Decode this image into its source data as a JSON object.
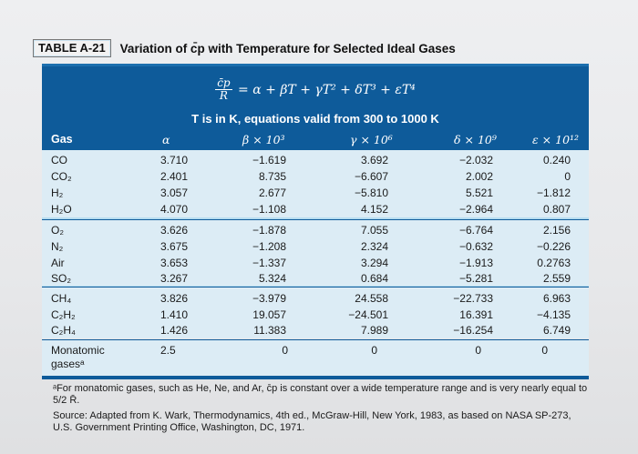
{
  "title": {
    "table_label": "TABLE A-21",
    "caption": "Variation of c̄p with Temperature for Selected Ideal Gases"
  },
  "header": {
    "equation_lhs_num": "c̄p",
    "equation_lhs_den": "R̄",
    "equation_rhs": "= α + βT + γT² + δT³ + εT⁴",
    "condition": "T is in K, equations valid from 300 to 1000 K",
    "columns": [
      "Gas",
      "α",
      "β × 10³",
      "γ × 10⁶",
      "δ × 10⁹",
      "ε × 10¹²"
    ]
  },
  "groups": [
    {
      "rows": [
        {
          "gas": "CO",
          "alpha": "3.710",
          "beta": "−1.619",
          "gamma": "3.692",
          "delta": "−2.032",
          "epsilon": "0.240"
        },
        {
          "gas": "CO₂",
          "alpha": "2.401",
          "beta": "8.735",
          "gamma": "−6.607",
          "delta": "2.002",
          "epsilon": "0"
        },
        {
          "gas": "H₂",
          "alpha": "3.057",
          "beta": "2.677",
          "gamma": "−5.810",
          "delta": "5.521",
          "epsilon": "−1.812"
        },
        {
          "gas": "H₂O",
          "alpha": "4.070",
          "beta": "−1.108",
          "gamma": "4.152",
          "delta": "−2.964",
          "epsilon": "0.807"
        }
      ]
    },
    {
      "rows": [
        {
          "gas": "O₂",
          "alpha": "3.626",
          "beta": "−1.878",
          "gamma": "7.055",
          "delta": "−6.764",
          "epsilon": "2.156"
        },
        {
          "gas": "N₂",
          "alpha": "3.675",
          "beta": "−1.208",
          "gamma": "2.324",
          "delta": "−0.632",
          "epsilon": "−0.226"
        },
        {
          "gas": "Air",
          "alpha": "3.653",
          "beta": "−1.337",
          "gamma": "3.294",
          "delta": "−1.913",
          "epsilon": "0.2763"
        },
        {
          "gas": "SO₂",
          "alpha": "3.267",
          "beta": "5.324",
          "gamma": "0.684",
          "delta": "−5.281",
          "epsilon": "2.559"
        }
      ]
    },
    {
      "rows": [
        {
          "gas": "CH₄",
          "alpha": "3.826",
          "beta": "−3.979",
          "gamma": "24.558",
          "delta": "−22.733",
          "epsilon": "6.963"
        },
        {
          "gas": "C₂H₂",
          "alpha": "1.410",
          "beta": "19.057",
          "gamma": "−24.501",
          "delta": "16.391",
          "epsilon": "−4.135"
        },
        {
          "gas": "C₂H₄",
          "alpha": "1.426",
          "beta": "11.383",
          "gamma": "7.989",
          "delta": "−16.254",
          "epsilon": "6.749"
        }
      ]
    },
    {
      "rows": [
        {
          "gas": "Monatomic gasesᵃ",
          "alpha": "2.5",
          "beta": "0",
          "gamma": "0",
          "delta": "0",
          "epsilon": "0"
        }
      ]
    }
  ],
  "footnote": "ᵃFor monatomic gases, such as He, Ne, and Ar, c̄p is constant over a wide temperature range and is very nearly equal to 5/2 R̄.",
  "source": "Source: Adapted from K. Wark, Thermodynamics, 4th ed., McGraw-Hill, New York, 1983, as based on NASA SP-273, U.S. Government Printing Office, Washington, DC, 1971.",
  "colors": {
    "header_blue": "#0e5b9a",
    "band_light_blue": "#b6dcef",
    "row_bg": "#dcecf5"
  }
}
